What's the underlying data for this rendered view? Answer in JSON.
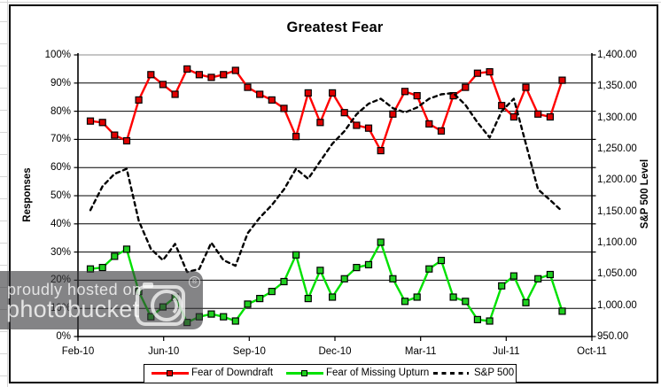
{
  "chart_data": {
    "type": "line",
    "title": "Greatest Fear",
    "ylabel_left": "Responses",
    "ylabel_right": "S&P 500 Level",
    "legend_position": "bottom",
    "grid": true,
    "x_tick_labels": [
      "Feb-10",
      "Jun-10",
      "Sep-10",
      "Dec-10",
      "Mar-11",
      "Jul-11",
      "Oct-11"
    ],
    "left_axis": {
      "min": 0,
      "max": 100,
      "step": 10,
      "tick_labels": [
        "0%",
        "10%",
        "20%",
        "30%",
        "40%",
        "50%",
        "60%",
        "70%",
        "80%",
        "90%",
        "100%"
      ]
    },
    "right_axis": {
      "min": 950,
      "max": 1400,
      "step": 50,
      "tick_labels": [
        "950.00",
        "1,000.00",
        "1,050.00",
        "1,100.00",
        "1,150.00",
        "1,200.00",
        "1,250.00",
        "1,300.00",
        "1,350.00",
        "1,400.00"
      ]
    },
    "series": [
      {
        "name": "Fear of Downdraft",
        "axis": "left",
        "color": "#ff0000",
        "marker": "square",
        "marker_fill": "#e00000",
        "style": "solid",
        "values": [
          76.5,
          76,
          71.5,
          69.5,
          84,
          93,
          89.5,
          86,
          95,
          93,
          92,
          93,
          94.5,
          88.5,
          86,
          84,
          81,
          71,
          86.5,
          76,
          86.5,
          79.5,
          75,
          74,
          66,
          79,
          87,
          85.5,
          75.5,
          73,
          85.5,
          88.5,
          93.5,
          94,
          82,
          78,
          88.5,
          79,
          78,
          91
        ]
      },
      {
        "name": "Fear of Missing Upturn",
        "axis": "left",
        "color": "#00e100",
        "marker": "square",
        "marker_fill": "#20d020",
        "style": "solid",
        "values": [
          24,
          24.5,
          28.5,
          31,
          16,
          7,
          10.5,
          14,
          5,
          7,
          8,
          7,
          5.5,
          11.5,
          13.5,
          16,
          19.5,
          29,
          13.5,
          23.5,
          14,
          20.5,
          24.5,
          25.5,
          33.5,
          20.5,
          12.5,
          14,
          24,
          27,
          14,
          12.5,
          6,
          5.5,
          18,
          21.5,
          12,
          20.5,
          22,
          9
        ]
      },
      {
        "name": "S&P 500",
        "axis": "right",
        "color": "#000000",
        "marker": "none",
        "style": "dashed",
        "values": [
          1152,
          1190,
          1210,
          1218,
          1135,
          1090,
          1072,
          1098,
          1053,
          1058,
          1100,
          1072,
          1063,
          1115,
          1140,
          1160,
          1185,
          1218,
          1202,
          1230,
          1258,
          1278,
          1305,
          1322,
          1330,
          1315,
          1308,
          1316,
          1330,
          1337,
          1339,
          1320,
          1292,
          1268,
          1310,
          1330,
          1258,
          1185,
          1168,
          1150
        ]
      }
    ]
  },
  "watermark": {
    "line1": "proudly hosted on",
    "line2": "photobucket",
    "registered_mark": "®"
  }
}
